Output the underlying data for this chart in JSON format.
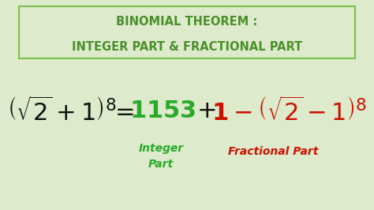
{
  "bg_color": "#ddeacc",
  "title_line1": "BINOMIAL THEOREM :",
  "title_line2": "INTEGER PART & FRACTIONAL PART",
  "title_color": "#4a8f2a",
  "title_box_edge_color": "#7abf4a",
  "integer_color": "#2aaa2a",
  "fractional_color": "#cc1100",
  "black_color": "#111111",
  "label_integer": "Integer\nPart",
  "label_fractional": "Fractional Part",
  "figsize": [
    4.74,
    2.66
  ],
  "dpi": 100
}
